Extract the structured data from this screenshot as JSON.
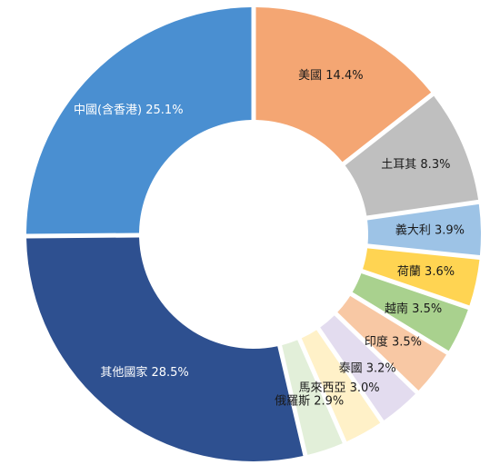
{
  "chart_data": {
    "type": "pie",
    "variant": "donut",
    "title": "",
    "unit": "%",
    "legend": "none",
    "slices": [
      {
        "label": "美國",
        "value": 14.4,
        "display": "美國 14.4%",
        "color": "#f4a673"
      },
      {
        "label": "土耳其",
        "value": 8.3,
        "display": "土耳其 8.3%",
        "color": "#bfbfbf"
      },
      {
        "label": "義大利",
        "value": 3.9,
        "display": "義大利 3.9%",
        "color": "#9dc3e6"
      },
      {
        "label": "荷蘭",
        "value": 3.6,
        "display": "荷蘭 3.6%",
        "color": "#ffd452"
      },
      {
        "label": "越南",
        "value": 3.5,
        "display": "越南 3.5%",
        "color": "#a9d18e"
      },
      {
        "label": "印度",
        "value": 3.5,
        "display": "印度 3.5%",
        "color": "#f8c8a4"
      },
      {
        "label": "泰國",
        "value": 3.2,
        "display": "泰國 3.2%",
        "color": "#e3dcef"
      },
      {
        "label": "馬來西亞",
        "value": 3.0,
        "display": "馬來西亞 3.0%",
        "color": "#fff1c8"
      },
      {
        "label": "俄羅斯",
        "value": 2.9,
        "display": "俄羅斯 2.9%",
        "color": "#e2efd9"
      },
      {
        "label": "其他國家",
        "value": 28.5,
        "display": "其他國家 28.5%",
        "color": "#2e5090"
      },
      {
        "label": "中國(含香港)",
        "value": 25.1,
        "display": "中國(含香港) 25.1%",
        "color": "#4a8fd1"
      }
    ]
  }
}
